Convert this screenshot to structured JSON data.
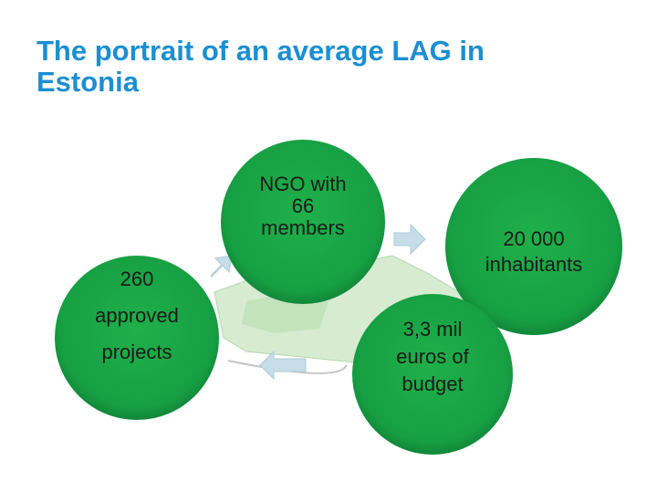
{
  "title": [
    "The portrait of an average LAG in",
    "Estonia"
  ],
  "nodes": [
    {
      "lines": [
        "NGO with",
        "66",
        "members"
      ]
    },
    {
      "lines": [
        "20 000",
        "inhabitants"
      ]
    },
    {
      "lines": [
        "3,3 mil",
        "euros of",
        "budget"
      ]
    },
    {
      "lines": [
        "260",
        "approved",
        "projects"
      ]
    }
  ]
}
